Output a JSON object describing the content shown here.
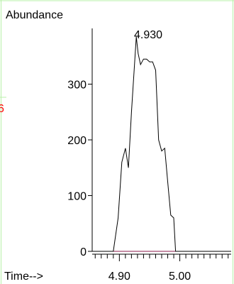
{
  "chart_data": {
    "type": "line",
    "ylabel": "Abundance",
    "xlabel": "Time-->",
    "peak_label": "4.930",
    "x_ticks": [
      "4.90",
      "5.00"
    ],
    "x_tick_values": [
      4.9,
      5.0
    ],
    "y_ticks": [
      "0",
      "100",
      "200",
      "300"
    ],
    "y_tick_values": [
      0,
      100,
      200,
      300
    ],
    "xlim": [
      4.855,
      5.085
    ],
    "ylim": [
      0,
      400
    ],
    "series": [
      {
        "x": [
          4.855,
          4.89,
          4.898,
          4.904,
          4.91,
          4.915,
          4.92,
          4.928,
          4.931,
          4.935,
          4.94,
          4.945,
          4.95,
          4.955,
          4.96,
          4.965,
          4.97,
          4.975,
          4.98,
          4.985,
          4.99,
          4.993,
          4.998,
          5.085
        ],
        "y": [
          0,
          0,
          60,
          160,
          185,
          150,
          250,
          385,
          355,
          335,
          345,
          345,
          340,
          340,
          325,
          200,
          180,
          185,
          125,
          65,
          60,
          0,
          0,
          0
        ]
      }
    ],
    "colors": {
      "line": "#000000",
      "baseline": "#8a1a4a",
      "frame": "#b8f0a8",
      "axis": "#000000"
    },
    "margin_mark": "6"
  }
}
